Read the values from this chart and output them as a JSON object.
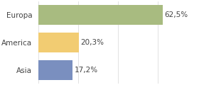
{
  "categories": [
    "Asia",
    "America",
    "Europa"
  ],
  "values": [
    17.2,
    20.3,
    62.5
  ],
  "labels": [
    "17,2%",
    "20,3%",
    "62,5%"
  ],
  "bar_colors": [
    "#7a8fbf",
    "#f2cc72",
    "#a8bb80"
  ],
  "background_color": "#ffffff",
  "xlim": [
    0,
    80
  ],
  "label_fontsize": 7.5,
  "tick_fontsize": 7.5,
  "bar_height": 0.72
}
